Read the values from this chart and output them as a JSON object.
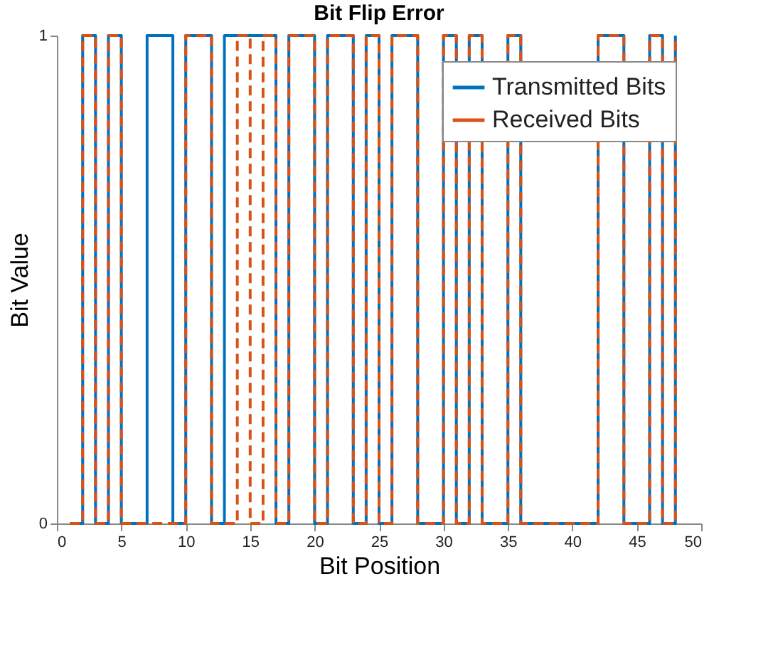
{
  "chart_data": {
    "type": "step",
    "title": "Bit Flip Error",
    "xlabel": "Bit Position",
    "ylabel": "Bit Value",
    "x": [
      1,
      2,
      3,
      4,
      5,
      6,
      7,
      8,
      9,
      10,
      11,
      12,
      13,
      14,
      15,
      16,
      17,
      18,
      19,
      20,
      21,
      22,
      23,
      24,
      25,
      26,
      27,
      28,
      29,
      30,
      31,
      32,
      33,
      34,
      35,
      36,
      37,
      38,
      39,
      40,
      41,
      42,
      43,
      44,
      45,
      46,
      47,
      48
    ],
    "series": [
      {
        "name": "Transmitted Bits",
        "color": "#0072bd",
        "line_style": "solid",
        "values": [
          0,
          1,
          0,
          1,
          0,
          0,
          1,
          1,
          0,
          1,
          1,
          0,
          1,
          1,
          1,
          1,
          0,
          1,
          1,
          0,
          1,
          1,
          0,
          1,
          0,
          1,
          1,
          0,
          0,
          1,
          0,
          1,
          0,
          0,
          1,
          0,
          0,
          0,
          0,
          0,
          0,
          1,
          1,
          0,
          0,
          1,
          0,
          1
        ]
      },
      {
        "name": "Received Bits",
        "color": "#d95319",
        "line_style": "dashed",
        "values": [
          0,
          1,
          0,
          1,
          0,
          0,
          0,
          0,
          0,
          1,
          1,
          0,
          0,
          1,
          0,
          1,
          0,
          1,
          1,
          0,
          1,
          1,
          0,
          1,
          0,
          1,
          1,
          0,
          0,
          1,
          0,
          1,
          0,
          0,
          1,
          0,
          0,
          0,
          0,
          0,
          0,
          1,
          1,
          0,
          0,
          1,
          0,
          1
        ]
      }
    ],
    "xlim": [
      0,
      50
    ],
    "xticks": [
      0,
      5,
      10,
      15,
      20,
      25,
      30,
      35,
      40,
      45,
      50
    ],
    "ylim": [
      0,
      1
    ],
    "yticks": [
      0,
      1
    ],
    "grid": false,
    "legend": "top right"
  }
}
